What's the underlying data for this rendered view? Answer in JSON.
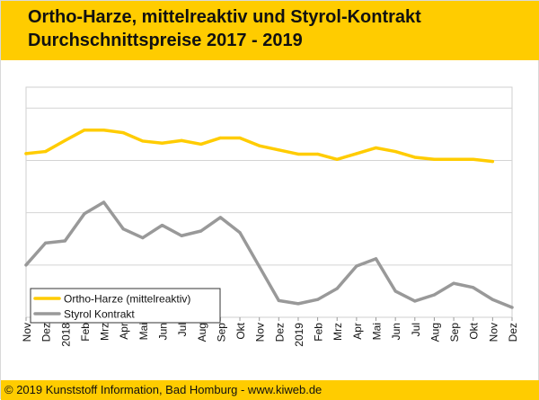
{
  "header": {
    "title_line1": "Ortho-Harze, mittelreaktiv und Styrol-Kontrakt",
    "title_line2": "Durchschnittspreise 2017 - 2019"
  },
  "footer": {
    "copyright": "© 2019 Kunststoff Information, Bad Homburg - www.kiweb.de"
  },
  "chart_data": {
    "type": "line",
    "title": "Ortho-Harze, mittelreaktiv und Styrol-Kontrakt Durchschnittspreise 2017 - 2019",
    "x": [
      "Nov",
      "Dez",
      "2018",
      "Feb",
      "Mrz",
      "Apr",
      "Mai",
      "Jun",
      "Jul",
      "Aug",
      "Sep",
      "Okt",
      "Nov",
      "Dez",
      "2019",
      "Feb",
      "Mrz",
      "Apr",
      "Mai",
      "Jun",
      "Jul",
      "Aug",
      "Sep",
      "Okt",
      "Nov",
      "Dez"
    ],
    "ylim": [
      0,
      4.4
    ],
    "y_gridlines": [
      1,
      2,
      3,
      4
    ],
    "y_tick_labels_shown": false,
    "grid": true,
    "legend_position": "bottom-left",
    "series": [
      {
        "name": "Ortho-Harze (mittelreaktiv)",
        "color": "#ffcc00",
        "values": [
          3.13,
          3.17,
          3.38,
          3.58,
          3.58,
          3.53,
          3.37,
          3.33,
          3.38,
          3.31,
          3.43,
          3.43,
          3.28,
          3.2,
          3.12,
          3.12,
          3.02,
          3.13,
          3.24,
          3.17,
          3.06,
          3.02,
          3.02,
          3.02,
          2.98,
          null
        ]
      },
      {
        "name": "Styrol Kontrakt",
        "color": "#999999",
        "values": [
          1.0,
          1.42,
          1.46,
          1.98,
          2.2,
          1.69,
          1.52,
          1.76,
          1.56,
          1.65,
          1.91,
          1.62,
          0.97,
          0.32,
          0.26,
          0.34,
          0.55,
          0.98,
          1.12,
          0.5,
          0.31,
          0.43,
          0.65,
          0.57,
          0.34,
          0.19
        ]
      }
    ]
  }
}
